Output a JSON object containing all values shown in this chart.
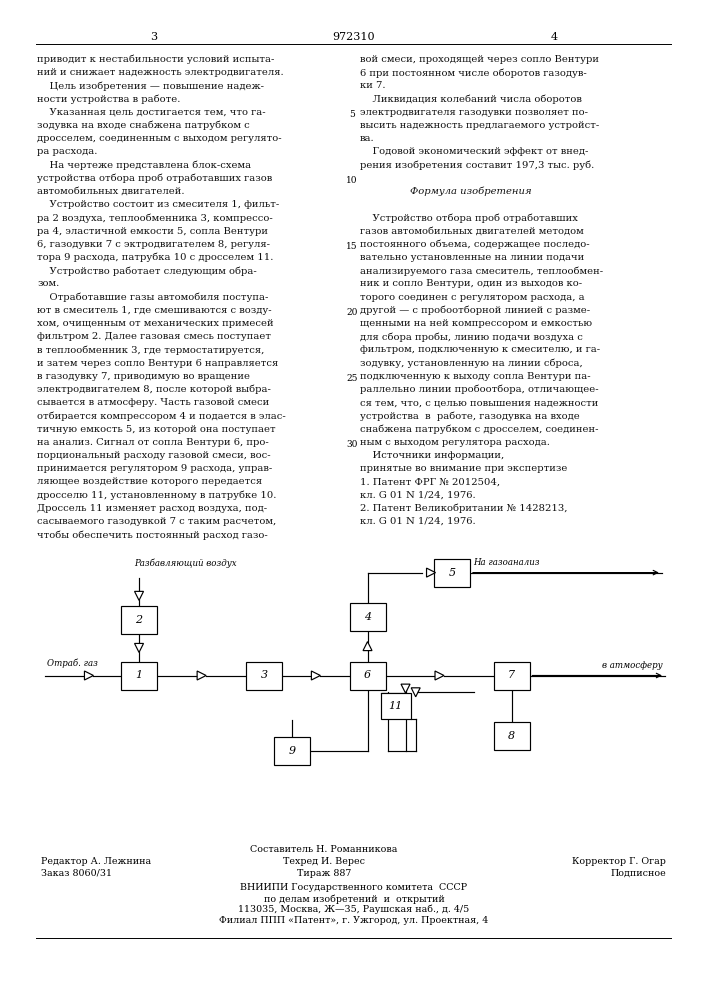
{
  "patent_number": "972310",
  "col1_lines": [
    "приводит к нестабильности условий испыта-",
    "ний и снижает надежность электродвигателя.",
    "    Цель изобретения — повышение надеж-",
    "ности устройства в работе.",
    "    Указанная цель достигается тем, что га-",
    "зодувка на входе снабжена патрубком с",
    "дросселем, соединенным с выходом регулято-",
    "ра расхода.",
    "    На чертеже представлена блок-схема",
    "устройства отбора проб отработавших газов",
    "автомобильных двигателей.",
    "    Устройство состоит из смесителя 1, фильт-",
    "ра 2 воздуха, теплообменника 3, компрессо-",
    "ра 4, эластичной емкости 5, сопла Вентури",
    "6, газодувки 7 с эктродвигателем 8, регуля-",
    "тора 9 расхода, патрубка 10 с дросселем 11.",
    "    Устройство работает следующим обра-",
    "зом.",
    "    Отработавшие газы автомобиля поступа-",
    "ют в смеситель 1, где смешиваются с возду-",
    "хом, очищенным от механических примесей",
    "фильтром 2. Далее газовая смесь поступает",
    "в теплообменник 3, где термостатируется,",
    "и затем через сопло Вентури 6 направляется",
    "в газодувку 7, приводимую во вращение",
    "электродвигателем 8, после которой выбра-",
    "сывается в атмосферу. Часть газовой смеси",
    "отбирается компрессором 4 и подается в элас-",
    "тичную емкость 5, из которой она поступает",
    "на анализ. Сигнал от сопла Вентури 6, про-",
    "порциональный расходу газовой смеси, вос-",
    "принимается регулятором 9 расхода, управ-",
    "ляющее воздействие которого передается",
    "дросселю 11, установленному в патрубке 10.",
    "Дроссель 11 изменяет расход воздуха, под-",
    "сасываемого газодувкой 7 с таким расчетом,",
    "чтобы обеспечить постоянный расход газо-"
  ],
  "col2_lines": [
    "вой смеси, проходящей через сопло Вентури",
    "6 при постоянном числе оборотов газодув-",
    "ки 7.",
    "    Ликвидация колебаний числа оборотов",
    "электродвигателя газодувки позволяет по-",
    "высить надежность предлагаемого устройст-",
    "ва.",
    "    Годовой экономический эффект от внед-",
    "рения изобретения составит 197,3 тыс. руб.",
    "",
    "                Формула изобретения",
    "",
    "    Устройство отбора проб отработавших",
    "газов автомобильных двигателей методом",
    "постоянного объема, содержащее последо-",
    "вательно установленные на линии подачи",
    "анализируемого газа смеситель, теплообмен-",
    "ник и сопло Вентури, один из выходов ко-",
    "торого соединен с регулятором расхода, а",
    "другой — с пробоотборной линией с разме-",
    "щенными на ней компрессором и емкостью",
    "для сбора пробы, линию подачи воздуха с",
    "фильтром, подключенную к смесителю, и га-",
    "зодувку, установленную на линии сброса,",
    "подключенную к выходу сопла Вентури па-",
    "раллельно линии пробоотбора, отличающее-",
    "ся тем, что, с целью повышения надежности",
    "устройства  в  работе, газодувка на входе",
    "снабжена патрубком с дросселем, соединен-",
    "ным с выходом регулятора расхода.",
    "    Источники информации,",
    "принятые во внимание при экспертизе",
    "1. Патент ФРГ № 2012504,",
    "кл. G 01 N 1/24, 1976.",
    "2. Патент Великобритании № 1428213,",
    "кл. G 01 N 1/24, 1976."
  ],
  "line_numbers": [
    5,
    10,
    15,
    20,
    25,
    30
  ],
  "footer": {
    "col1": [
      "Редактор А. Лежнина",
      "Заказ 8060/31"
    ],
    "col2": [
      "Составитель Н. Романникова",
      "Техред И. Верес",
      "Тираж 887"
    ],
    "col3": [
      "Корректор Г. Огар",
      "Подписное"
    ],
    "center_lines": [
      "ВНИИПИ Государственного комитета  СССР",
      "по делам изобретений  и  открытий",
      "113035, Москва, Ж—35, Раушская наб., д. 4/5",
      "Филиал ППП «Патент», г. Ужгород, ул. Проектная, 4"
    ]
  }
}
